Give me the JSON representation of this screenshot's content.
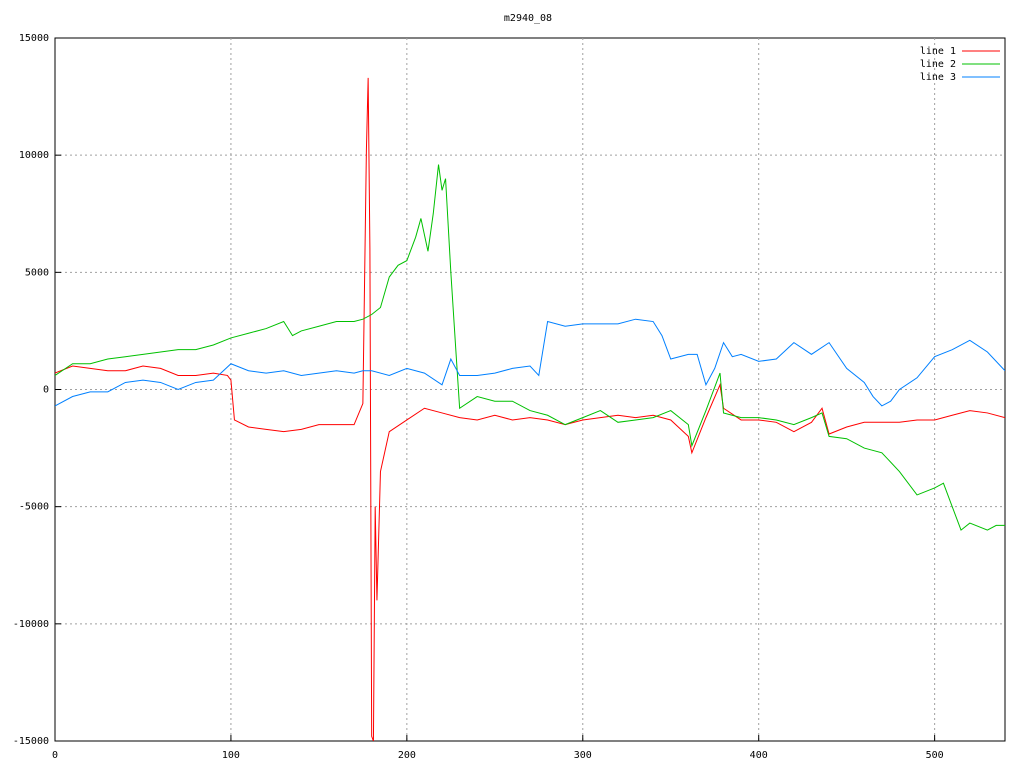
{
  "chart_data": {
    "type": "line",
    "title": "m2940_08",
    "xlim": [
      0,
      540
    ],
    "xticks": [
      0,
      100,
      200,
      300,
      400,
      500
    ],
    "ylim": [
      -15000,
      15000
    ],
    "yticks": [
      -15000,
      -10000,
      -5000,
      0,
      5000,
      10000,
      15000
    ],
    "grid": true,
    "legend": "top-right",
    "series": [
      {
        "name": "line 1",
        "color": "#ff0000",
        "x": [
          0,
          10,
          20,
          30,
          40,
          50,
          60,
          70,
          80,
          90,
          98,
          100,
          102,
          110,
          120,
          130,
          140,
          150,
          160,
          170,
          175,
          177,
          178,
          179,
          180,
          181,
          182,
          183,
          185,
          190,
          200,
          210,
          220,
          230,
          240,
          250,
          260,
          270,
          280,
          290,
          300,
          310,
          320,
          330,
          340,
          350,
          360,
          362,
          370,
          378,
          380,
          390,
          400,
          410,
          420,
          430,
          436,
          440,
          450,
          460,
          470,
          480,
          490,
          500,
          510,
          520,
          530,
          540
        ],
        "values": [
          700,
          1000,
          900,
          800,
          800,
          1000,
          900,
          600,
          600,
          700,
          600,
          400,
          -1300,
          -1600,
          -1700,
          -1800,
          -1700,
          -1500,
          -1500,
          -1500,
          -600,
          10200,
          13300,
          6000,
          -14800,
          -15000,
          -5000,
          -9000,
          -3500,
          -1800,
          -1300,
          -800,
          -1000,
          -1200,
          -1300,
          -1100,
          -1300,
          -1200,
          -1300,
          -1500,
          -1300,
          -1200,
          -1100,
          -1200,
          -1100,
          -1300,
          -2000,
          -2700,
          -1200,
          200,
          -800,
          -1300,
          -1300,
          -1400,
          -1800,
          -1400,
          -800,
          -1900,
          -1600,
          -1400,
          -1400,
          -1400,
          -1300,
          -1300,
          -1100,
          -900,
          -1000,
          -1200
        ]
      },
      {
        "name": "line 2",
        "color": "#00c000",
        "x": [
          0,
          10,
          20,
          30,
          40,
          50,
          60,
          70,
          80,
          90,
          100,
          110,
          120,
          130,
          135,
          140,
          150,
          160,
          170,
          175,
          180,
          185,
          190,
          195,
          200,
          205,
          208,
          210,
          212,
          215,
          218,
          220,
          222,
          225,
          228,
          230,
          240,
          250,
          260,
          270,
          280,
          290,
          300,
          310,
          320,
          330,
          340,
          350,
          360,
          362,
          370,
          378,
          380,
          390,
          400,
          410,
          420,
          430,
          436,
          440,
          450,
          460,
          470,
          480,
          490,
          500,
          505,
          510,
          515,
          520,
          530,
          535,
          540
        ],
        "values": [
          600,
          1100,
          1100,
          1300,
          1400,
          1500,
          1600,
          1700,
          1700,
          1900,
          2200,
          2400,
          2600,
          2900,
          2300,
          2500,
          2700,
          2900,
          2900,
          3000,
          3200,
          3500,
          4800,
          5300,
          5500,
          6500,
          7300,
          6600,
          5900,
          7500,
          9600,
          8500,
          9000,
          5000,
          1500,
          -800,
          -300,
          -500,
          -500,
          -900,
          -1100,
          -1500,
          -1200,
          -900,
          -1400,
          -1300,
          -1200,
          -900,
          -1500,
          -2400,
          -900,
          700,
          -1000,
          -1200,
          -1200,
          -1300,
          -1500,
          -1200,
          -1000,
          -2000,
          -2100,
          -2500,
          -2700,
          -3500,
          -4500,
          -4200,
          -4000,
          -5000,
          -6000,
          -5700,
          -6000,
          -5800,
          -5800
        ]
      },
      {
        "name": "line 3",
        "color": "#0080ff",
        "x": [
          0,
          10,
          20,
          30,
          40,
          50,
          60,
          70,
          80,
          90,
          100,
          110,
          120,
          130,
          140,
          150,
          160,
          170,
          175,
          180,
          190,
          200,
          210,
          220,
          225,
          230,
          240,
          250,
          260,
          270,
          275,
          280,
          290,
          300,
          310,
          320,
          330,
          340,
          345,
          350,
          360,
          365,
          370,
          375,
          380,
          385,
          390,
          400,
          410,
          420,
          430,
          440,
          450,
          460,
          465,
          470,
          475,
          480,
          490,
          500,
          510,
          520,
          530,
          540
        ],
        "values": [
          -700,
          -300,
          -100,
          -100,
          300,
          400,
          300,
          0,
          300,
          400,
          1100,
          800,
          700,
          800,
          600,
          700,
          800,
          700,
          800,
          800,
          600,
          900,
          700,
          200,
          1300,
          600,
          600,
          700,
          900,
          1000,
          600,
          2900,
          2700,
          2800,
          2800,
          2800,
          3000,
          2900,
          2300,
          1300,
          1500,
          1500,
          200,
          900,
          2000,
          1400,
          1500,
          1200,
          1300,
          2000,
          1500,
          2000,
          900,
          300,
          -300,
          -700,
          -500,
          0,
          500,
          1400,
          1700,
          2100,
          1600,
          800
        ]
      }
    ]
  }
}
